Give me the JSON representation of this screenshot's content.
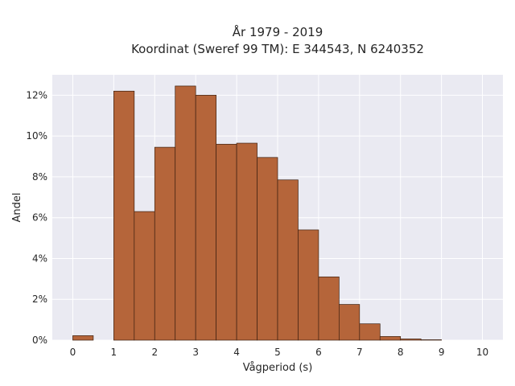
{
  "chart_data": {
    "type": "bar",
    "title": "År 1979 - 2019",
    "subtitle": "Koordinat (Sweref 99 TM): E 344543, N 6240352",
    "xlabel": "Vågperiod (s)",
    "ylabel": "Andel",
    "bin_width": 0.5,
    "bins_start": [
      0,
      0.5,
      1,
      1.5,
      2,
      2.5,
      3,
      3.5,
      4,
      4.5,
      5,
      5.5,
      6,
      6.5,
      7,
      7.5,
      8,
      8.5,
      9,
      9.5
    ],
    "values": [
      0.22,
      0,
      12.2,
      6.3,
      9.45,
      12.45,
      12.0,
      9.6,
      9.65,
      8.95,
      7.85,
      5.4,
      3.1,
      1.75,
      0.8,
      0.18,
      0.06,
      0.02,
      0,
      0
    ],
    "xlim": [
      -0.5,
      10.5
    ],
    "ylim": [
      0,
      13
    ],
    "x_ticks": [
      0,
      1,
      2,
      3,
      4,
      5,
      6,
      7,
      8,
      9,
      10
    ],
    "x_tick_labels": [
      "0",
      "1",
      "2",
      "3",
      "4",
      "5",
      "6",
      "7",
      "8",
      "9",
      "10"
    ],
    "y_ticks": [
      0,
      2,
      4,
      6,
      8,
      10,
      12
    ],
    "y_tick_labels": [
      "0%",
      "2%",
      "4%",
      "6%",
      "8%",
      "10%",
      "12%"
    ],
    "grid": true,
    "colors": {
      "bar_fill": "#b5653a",
      "bar_stroke": "#3d2010",
      "plot_background": "#eaeaf2",
      "grid": "#ffffff"
    }
  }
}
